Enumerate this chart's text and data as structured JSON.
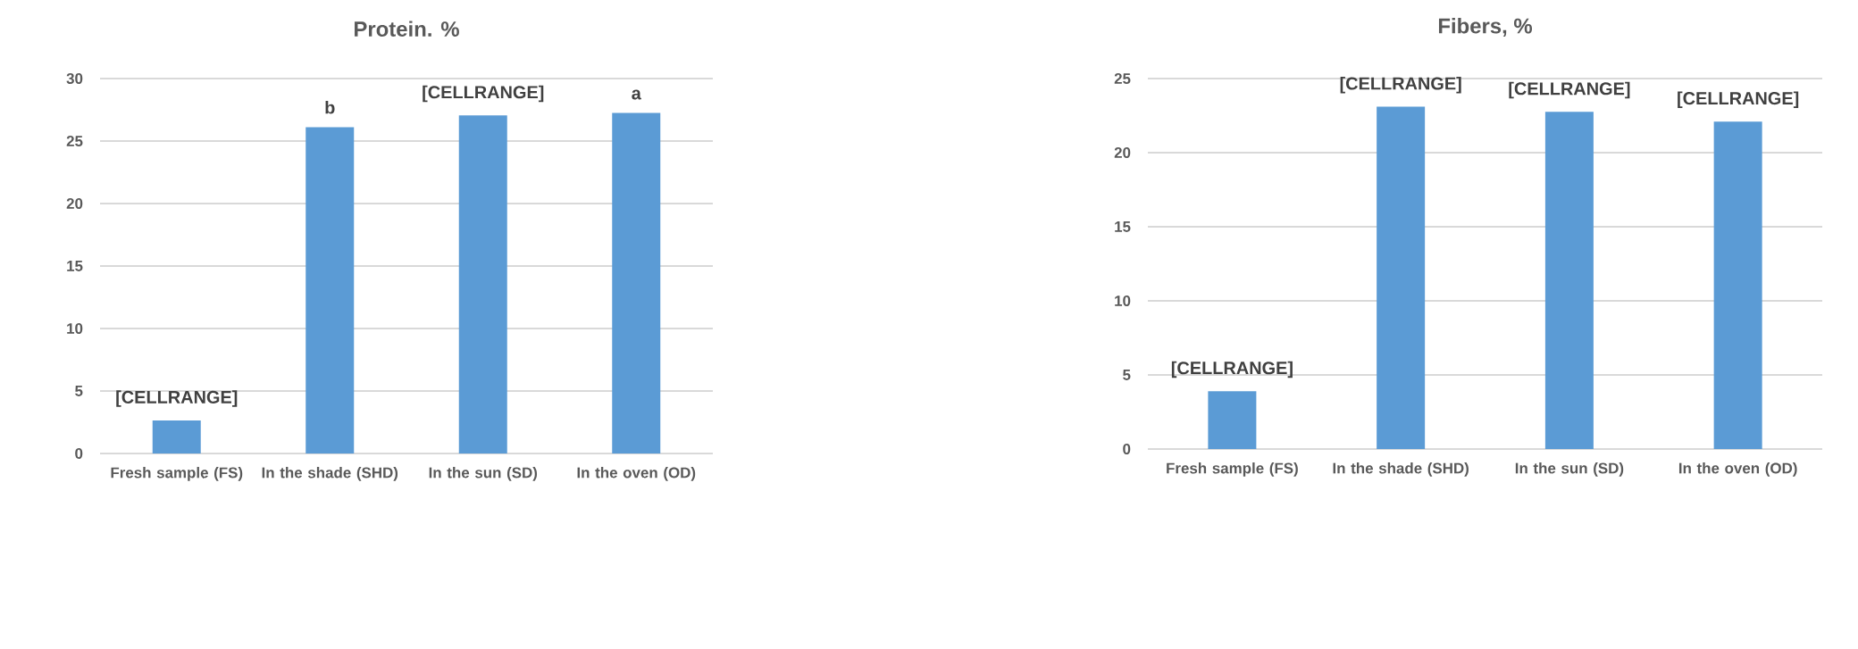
{
  "chart_data": [
    {
      "type": "bar",
      "title": "Protein. %",
      "categories": [
        "Fresh sample (FS)",
        "In the shade (SHD)",
        "In the sun (SD)",
        "In the oven (OD)"
      ],
      "values": [
        2.65,
        26.1,
        27.05,
        27.25
      ],
      "color": "#5b9bd5",
      "value_labels": [
        "[CELLRANGE]",
        "b",
        "[CELLRANGE]",
        "a"
      ],
      "ylim": [
        0,
        30
      ],
      "yticks": [
        0,
        5,
        10,
        15,
        20,
        25,
        30
      ],
      "grid": "y"
    },
    {
      "type": "bar",
      "title": "Fibers, %",
      "categories": [
        "Fresh sample (FS)",
        "In the shade (SHD)",
        "In the sun (SD)",
        "In the oven (OD)"
      ],
      "values": [
        3.9,
        23.1,
        22.75,
        22.1
      ],
      "color": "#5b9bd5",
      "value_labels": [
        "[CELLRANGE]",
        "[CELLRANGE]",
        "[CELLRANGE]",
        "[CELLRANGE]"
      ],
      "ylim": [
        0,
        25
      ],
      "yticks": [
        0,
        5,
        10,
        15,
        20,
        25
      ],
      "grid": "y"
    }
  ]
}
